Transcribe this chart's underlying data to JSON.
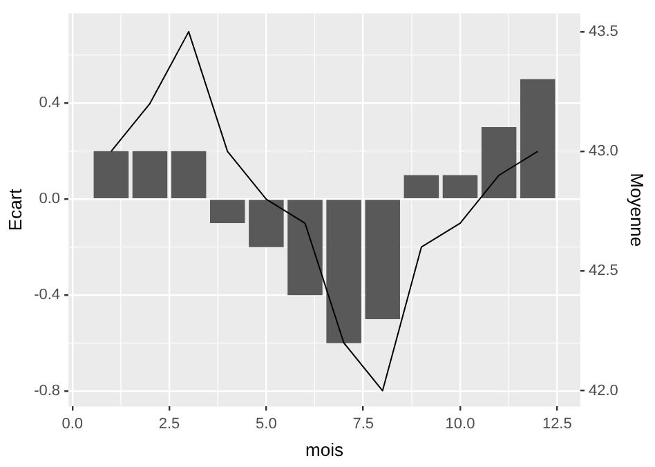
{
  "chart_data": {
    "type": "bar",
    "xlabel": "mois",
    "ylabel": "Ecart",
    "y2label": "Moyenne",
    "x": [
      1,
      2,
      3,
      4,
      5,
      6,
      7,
      8,
      9,
      10,
      11,
      12
    ],
    "series": [
      {
        "color": "#595959",
        "values": [
          0.2,
          0.2,
          0.2,
          -0.1,
          -0.2,
          -0.4,
          -0.6,
          -0.5,
          0.1,
          0.1,
          0.3,
          0.5
        ]
      },
      {
        "type": "line",
        "color": "#000000",
        "axis": "y2",
        "values": [
          43.0,
          43.2,
          43.5,
          43.0,
          42.8,
          42.7,
          42.2,
          42.0,
          42.6,
          42.7,
          42.9,
          43.0
        ]
      }
    ],
    "xlim": [
      -0.1,
      13.1
    ],
    "xticks": [
      {
        "value": 0,
        "label": "0.0"
      },
      2.5,
      {
        "value": 5,
        "label": "5.0"
      },
      7.5,
      {
        "value": 10,
        "label": "10.0"
      },
      12.5
    ],
    "ylim": [
      -0.864,
      0.774
    ],
    "yticks": [
      {
        "value": -0.8,
        "label": "-0.8"
      },
      -0.4,
      {
        "value": 0,
        "label": "0.0"
      },
      0.4
    ],
    "y2lim": [
      41.934,
      43.577
    ],
    "y2ticks": [
      {
        "value": 42,
        "label": "42.0"
      },
      42.5,
      {
        "value": 43,
        "label": "43.0"
      },
      43.5
    ],
    "grid": true
  }
}
